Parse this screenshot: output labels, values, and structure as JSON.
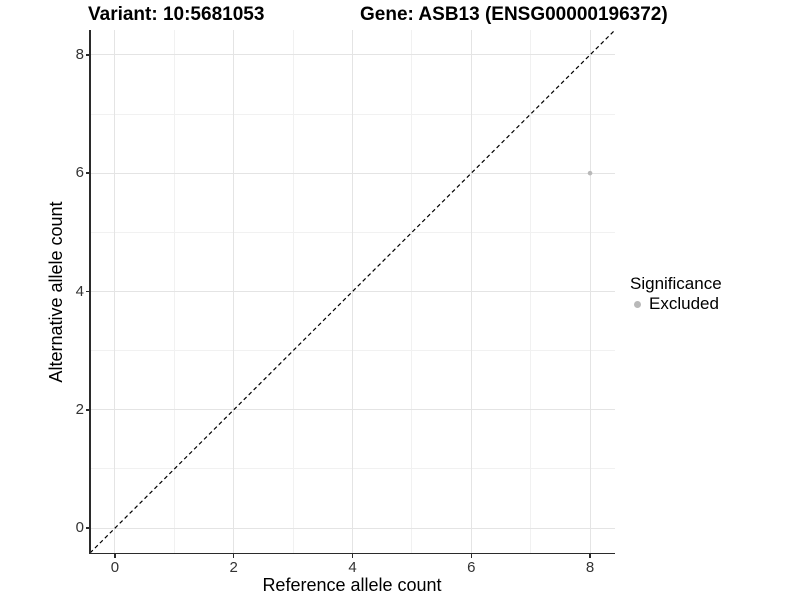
{
  "chart_data": {
    "type": "scatter",
    "title_left": "Variant: 10:5681053",
    "title_right": "Gene: ASB13 (ENSG00000196372)",
    "xlabel": "Reference allele count",
    "ylabel": "Alternative allele count",
    "xlim": [
      -0.42,
      8.42
    ],
    "ylim": [
      -0.42,
      8.42
    ],
    "x_major_ticks": [
      0,
      2,
      4,
      6,
      8
    ],
    "y_major_ticks": [
      0,
      2,
      4,
      6,
      8
    ],
    "x_minor_ticks": [
      1,
      3,
      5,
      7
    ],
    "y_minor_ticks": [
      1,
      3,
      5,
      7
    ],
    "grid": "major+minor on white background",
    "axis_color": "#2b2b2b",
    "legend": {
      "title": "Significance",
      "position": "right",
      "items": [
        {
          "label": "Excluded",
          "color": "#b9b9b9"
        }
      ]
    },
    "series": [
      {
        "name": "Excluded",
        "color": "#b9b9b9",
        "marker_radius": 2.3,
        "points": [
          [
            8,
            6
          ]
        ]
      }
    ],
    "reference_line": {
      "kind": "identity y=x",
      "from": [
        -0.42,
        -0.42
      ],
      "to": [
        8.42,
        8.42
      ],
      "style": "dashed",
      "color": "#000000",
      "width": 1.2
    }
  }
}
